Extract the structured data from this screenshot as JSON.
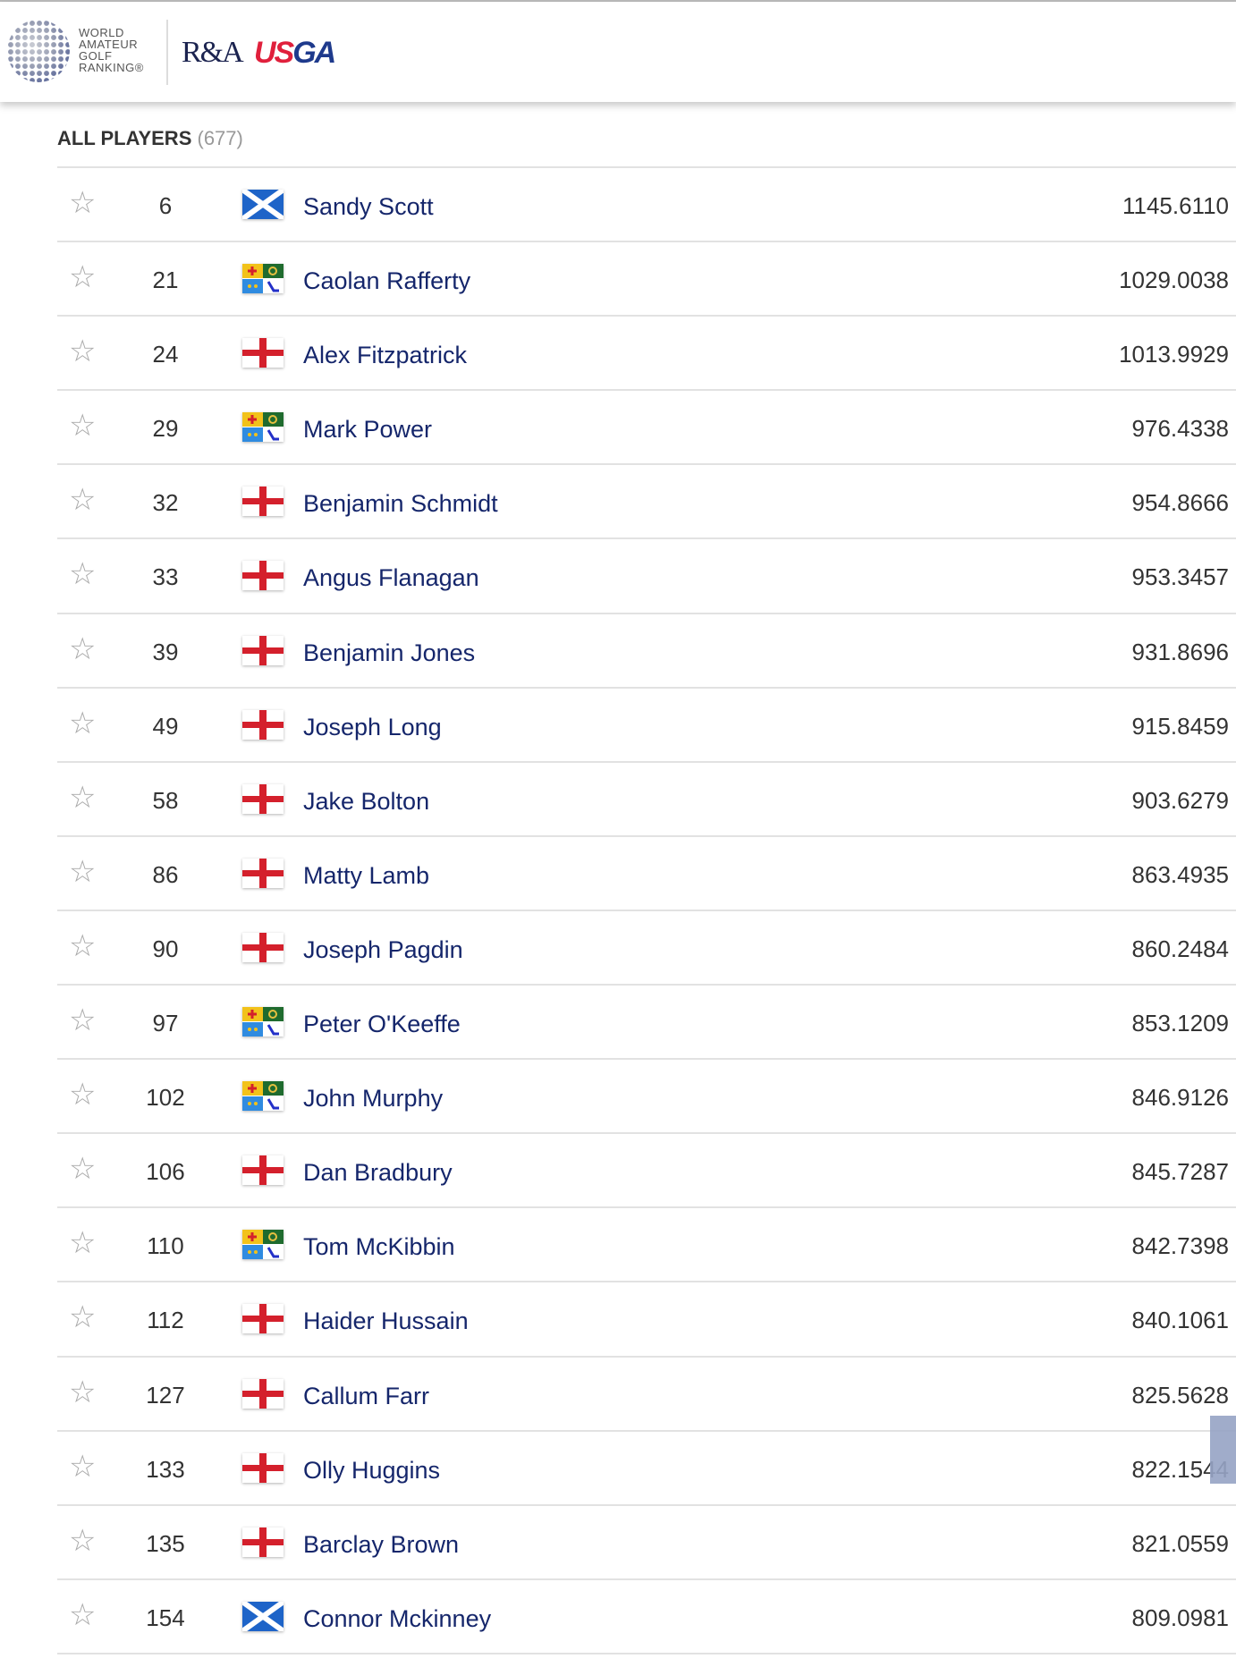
{
  "header": {
    "logo_text": [
      "WORLD",
      "AMATEUR",
      "GOLF",
      "RANKING®"
    ],
    "partner1": "R&A",
    "partner2_a": "US",
    "partner2_b": "GA"
  },
  "list": {
    "title": "ALL PLAYERS",
    "count": "(677)"
  },
  "colors": {
    "name": "#15266b",
    "usga_red": "#e0203c",
    "usga_blue": "#1e3a8c"
  },
  "players": [
    {
      "rank": "6",
      "flag": "scotland",
      "name": "Sandy Scott",
      "points": "1145.6110"
    },
    {
      "rank": "21",
      "flag": "ireland",
      "name": "Caolan Rafferty",
      "points": "1029.0038"
    },
    {
      "rank": "24",
      "flag": "england",
      "name": "Alex Fitzpatrick",
      "points": "1013.9929"
    },
    {
      "rank": "29",
      "flag": "ireland",
      "name": "Mark Power",
      "points": "976.4338"
    },
    {
      "rank": "32",
      "flag": "england",
      "name": "Benjamin Schmidt",
      "points": "954.8666"
    },
    {
      "rank": "33",
      "flag": "england",
      "name": "Angus Flanagan",
      "points": "953.3457"
    },
    {
      "rank": "39",
      "flag": "england",
      "name": "Benjamin Jones",
      "points": "931.8696"
    },
    {
      "rank": "49",
      "flag": "england",
      "name": "Joseph Long",
      "points": "915.8459"
    },
    {
      "rank": "58",
      "flag": "england",
      "name": "Jake Bolton",
      "points": "903.6279"
    },
    {
      "rank": "86",
      "flag": "england",
      "name": "Matty Lamb",
      "points": "863.4935"
    },
    {
      "rank": "90",
      "flag": "england",
      "name": "Joseph Pagdin",
      "points": "860.2484"
    },
    {
      "rank": "97",
      "flag": "ireland",
      "name": "Peter O'Keeffe",
      "points": "853.1209"
    },
    {
      "rank": "102",
      "flag": "ireland",
      "name": "John Murphy",
      "points": "846.9126"
    },
    {
      "rank": "106",
      "flag": "england",
      "name": "Dan Bradbury",
      "points": "845.7287"
    },
    {
      "rank": "110",
      "flag": "ireland",
      "name": "Tom McKibbin",
      "points": "842.7398"
    },
    {
      "rank": "112",
      "flag": "england",
      "name": "Haider Hussain",
      "points": "840.1061"
    },
    {
      "rank": "127",
      "flag": "england",
      "name": "Callum Farr",
      "points": "825.5628"
    },
    {
      "rank": "133",
      "flag": "england",
      "name": "Olly Huggins",
      "points": "822.1544"
    },
    {
      "rank": "135",
      "flag": "england",
      "name": "Barclay Brown",
      "points": "821.0559"
    },
    {
      "rank": "154",
      "flag": "scotland",
      "name": "Connor Mckinney",
      "points": "809.0981"
    }
  ]
}
